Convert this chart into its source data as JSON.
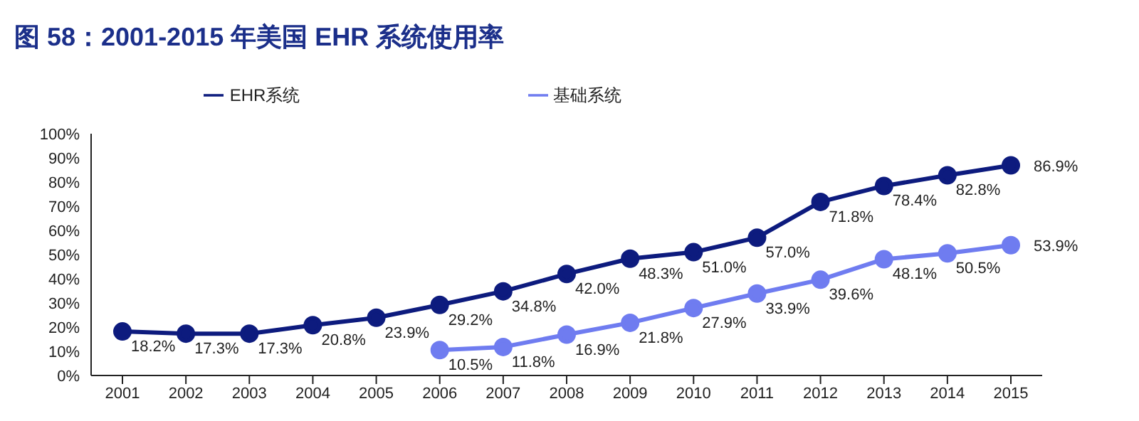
{
  "chart_data": {
    "type": "line",
    "title": "图 58：2001-2015 年美国 EHR 系统使用率",
    "categories": [
      "2001",
      "2002",
      "2003",
      "2004",
      "2005",
      "2006",
      "2007",
      "2008",
      "2009",
      "2010",
      "2011",
      "2012",
      "2013",
      "2014",
      "2015"
    ],
    "series": [
      {
        "name": "EHR系统",
        "color": "#0d1b7e",
        "values": [
          18.2,
          17.3,
          17.3,
          20.8,
          23.9,
          29.2,
          34.8,
          42.0,
          48.3,
          51.0,
          57.0,
          71.8,
          78.4,
          82.8,
          86.9
        ],
        "value_labels": [
          "18.2%",
          "17.3%",
          "17.3%",
          "20.8%",
          "23.9%",
          "29.2%",
          "34.8%",
          "42.0%",
          "48.3%",
          "51.0%",
          "57.0%",
          "71.8%",
          "78.4%",
          "82.8%",
          "86.9%"
        ]
      },
      {
        "name": "基础系统",
        "color": "#6f7cf0",
        "values": [
          null,
          null,
          null,
          null,
          null,
          10.5,
          11.8,
          16.9,
          21.8,
          27.9,
          33.9,
          39.6,
          48.1,
          50.5,
          53.9
        ],
        "value_labels": [
          null,
          null,
          null,
          null,
          null,
          "10.5%",
          "11.8%",
          "16.9%",
          "21.8%",
          "27.9%",
          "33.9%",
          "39.6%",
          "48.1%",
          "50.5%",
          "53.9%"
        ]
      }
    ],
    "ylim": [
      0,
      100
    ],
    "yticks": [
      {
        "value": 0,
        "label": "0%"
      },
      {
        "value": 10,
        "label": "10%"
      },
      {
        "value": 20,
        "label": "20%"
      },
      {
        "value": 30,
        "label": "30%"
      },
      {
        "value": 40,
        "label": "40%"
      },
      {
        "value": 50,
        "label": "50%"
      },
      {
        "value": 60,
        "label": "60%"
      },
      {
        "value": 70,
        "label": "70%"
      },
      {
        "value": 80,
        "label": "80%"
      },
      {
        "value": 90,
        "label": "90%"
      },
      {
        "value": 100,
        "label": "100%"
      }
    ],
    "grid": false,
    "legend": "top",
    "marker": "circle",
    "line_style": "solid"
  }
}
